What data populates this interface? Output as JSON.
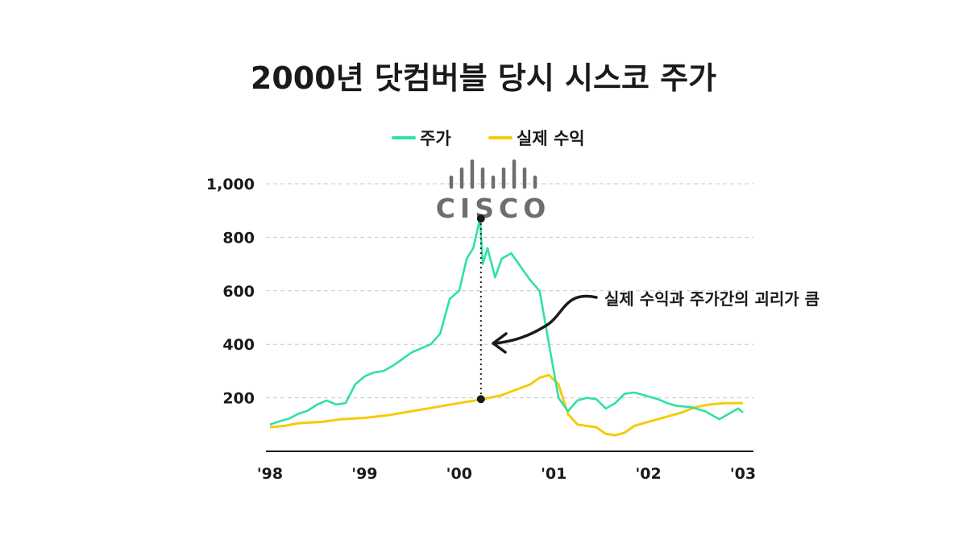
{
  "chart_data": {
    "type": "line",
    "title": "2000년 닷컴버블 당시 시스코 주가",
    "logo_text": "CISCO",
    "legend_position": "top-center",
    "grid": true,
    "x_tick_labels": [
      "'98",
      "'99",
      "'00",
      "'01",
      "'02",
      "'03"
    ],
    "y_ticks": [
      200,
      400,
      600,
      800,
      1000
    ],
    "y_tick_labels": [
      "200",
      "400",
      "600",
      "800",
      "1,000"
    ],
    "xlim": [
      1998.0,
      2003.0
    ],
    "ylim": [
      0,
      1000
    ],
    "annotation": "실제 수익과 주가간의 괴리가 큼",
    "gap_marker": {
      "x": 2000.23,
      "y_top": 870,
      "y_bottom": 195
    },
    "colors": {
      "stock": "#2ee0a6",
      "earnings": "#f5cb0c",
      "text": "#1a1a1a",
      "grid": "#c8c8c8",
      "logo": "#6e6e6e"
    },
    "series": [
      {
        "name": "주가",
        "x": [
          1998.0,
          1998.1,
          1998.2,
          1998.3,
          1998.4,
          1998.5,
          1998.6,
          1998.7,
          1998.8,
          1998.9,
          1999.0,
          1999.1,
          1999.2,
          1999.3,
          1999.4,
          1999.5,
          1999.6,
          1999.7,
          1999.8,
          1999.9,
          2000.0,
          2000.08,
          2000.15,
          2000.22,
          2000.25,
          2000.3,
          2000.38,
          2000.45,
          2000.55,
          2000.65,
          2000.75,
          2000.85,
          2000.95,
          2001.05,
          2001.15,
          2001.25,
          2001.35,
          2001.45,
          2001.55,
          2001.65,
          2001.75,
          2001.85,
          2001.95,
          2002.1,
          2002.2,
          2002.3,
          2002.45,
          2002.6,
          2002.75,
          2002.85,
          2002.95,
          2003.0
        ],
        "values": [
          100,
          112,
          122,
          140,
          152,
          175,
          190,
          175,
          180,
          250,
          280,
          295,
          300,
          320,
          345,
          370,
          385,
          400,
          440,
          570,
          600,
          720,
          760,
          870,
          700,
          760,
          650,
          720,
          740,
          690,
          640,
          600,
          400,
          200,
          150,
          190,
          200,
          195,
          160,
          180,
          215,
          220,
          210,
          195,
          180,
          170,
          165,
          150,
          120,
          140,
          160,
          145
        ]
      },
      {
        "name": "실제 수익",
        "x": [
          1998.0,
          1998.15,
          1998.3,
          1998.55,
          1998.75,
          1999.0,
          1999.25,
          1999.5,
          1999.75,
          2000.0,
          2000.25,
          2000.45,
          2000.6,
          2000.75,
          2000.85,
          2000.95,
          2001.05,
          2001.15,
          2001.25,
          2001.45,
          2001.55,
          2001.65,
          2001.75,
          2001.85,
          2001.95,
          2002.1,
          2002.35,
          2002.5,
          2002.65,
          2002.8,
          2003.0
        ],
        "values": [
          90,
          95,
          105,
          110,
          120,
          125,
          135,
          150,
          165,
          180,
          195,
          210,
          230,
          250,
          275,
          285,
          250,
          140,
          100,
          90,
          65,
          60,
          70,
          95,
          105,
          120,
          145,
          165,
          175,
          180,
          180
        ]
      }
    ]
  }
}
